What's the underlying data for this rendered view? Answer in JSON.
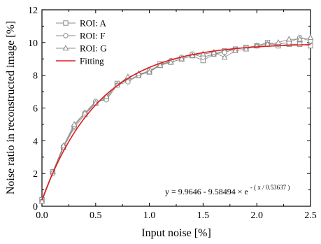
{
  "chart_data": {
    "type": "line",
    "xlabel": "Input noise [%]",
    "ylabel": "Noise ratio in reconstructed image [%]",
    "xlim": [
      0,
      2.5
    ],
    "ylim": [
      0,
      12
    ],
    "xticks": [
      0.0,
      0.5,
      1.0,
      1.5,
      2.0,
      2.5
    ],
    "xtick_labels": [
      "0.0",
      "0.5",
      "1.0",
      "1.5",
      "2.0",
      "2.5"
    ],
    "yticks": [
      0,
      2,
      4,
      6,
      8,
      10,
      12
    ],
    "ytick_labels": [
      "0",
      "2",
      "4",
      "6",
      "8",
      "10",
      "12"
    ],
    "legend_position": "top-left",
    "grid": false,
    "x": [
      0.0,
      0.1,
      0.2,
      0.3,
      0.4,
      0.5,
      0.6,
      0.7,
      0.8,
      0.9,
      1.0,
      1.1,
      1.2,
      1.3,
      1.4,
      1.5,
      1.6,
      1.7,
      1.8,
      1.9,
      2.0,
      2.1,
      2.2,
      2.3,
      2.4,
      2.5
    ],
    "series": [
      {
        "name": "ROI: A",
        "marker": "square",
        "color": "#8c8c8c",
        "values": [
          0.4,
          2.1,
          3.6,
          4.8,
          5.6,
          6.3,
          6.6,
          7.5,
          7.7,
          8.0,
          8.2,
          8.7,
          8.8,
          9.0,
          9.2,
          8.9,
          9.3,
          9.5,
          9.6,
          9.7,
          9.8,
          10.0,
          9.8,
          9.9,
          9.9,
          9.8
        ]
      },
      {
        "name": "ROI: F",
        "marker": "circle",
        "color": "#8c8c8c",
        "values": [
          0.3,
          2.0,
          3.6,
          4.9,
          5.7,
          6.4,
          6.5,
          7.4,
          7.6,
          8.0,
          8.3,
          8.6,
          8.9,
          9.1,
          9.3,
          9.1,
          9.3,
          9.4,
          9.6,
          9.7,
          9.8,
          9.9,
          9.9,
          10.0,
          10.3,
          10.1
        ]
      },
      {
        "name": "ROI: G",
        "marker": "triangle",
        "color": "#8c8c8c",
        "values": [
          0.3,
          2.1,
          3.7,
          5.0,
          5.7,
          6.3,
          6.7,
          7.4,
          7.9,
          8.1,
          8.2,
          8.6,
          8.8,
          9.0,
          9.2,
          9.3,
          9.4,
          9.1,
          9.5,
          9.6,
          9.8,
          9.9,
          10.0,
          10.2,
          10.2,
          10.3
        ]
      }
    ],
    "fit": {
      "name": "Fitting",
      "color": "#e31a1c",
      "a": 9.9646,
      "b": 9.58494,
      "t": 0.53637,
      "equation": {
        "base": "y = 9.9646 - 9.58494 × e",
        "exponent": "- ( x / 0.53637 )"
      }
    }
  }
}
